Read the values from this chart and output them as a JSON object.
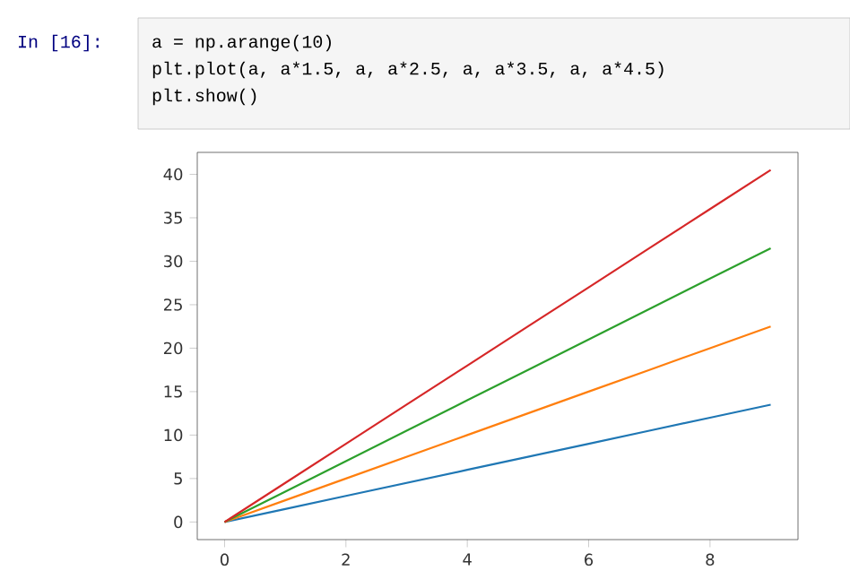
{
  "chart_data": {
    "type": "line",
    "x": [
      0,
      1,
      2,
      3,
      4,
      5,
      6,
      7,
      8,
      9
    ],
    "series": [
      {
        "color": "#1f77b4",
        "values": [
          0,
          1.5,
          3,
          4.5,
          6,
          7.5,
          9,
          10.5,
          12,
          13.5
        ]
      },
      {
        "color": "#ff7f0e",
        "values": [
          0,
          2.5,
          5,
          7.5,
          10,
          12.5,
          15,
          17.5,
          20,
          22.5
        ]
      },
      {
        "color": "#2ca02c",
        "values": [
          0,
          3.5,
          7,
          10.5,
          14,
          17.5,
          21,
          24.5,
          28,
          31.5
        ]
      },
      {
        "color": "#d62728",
        "values": [
          0,
          4.5,
          9,
          13.5,
          18,
          22.5,
          27,
          31.5,
          36,
          40.5
        ]
      }
    ],
    "xlim": [
      -0.45,
      9.45
    ],
    "ylim": [
      -2.025,
      42.525
    ],
    "xticks": [
      0,
      2,
      4,
      6,
      8
    ],
    "yticks": [
      0,
      5,
      10,
      15,
      20,
      25,
      30,
      35,
      40
    ],
    "grid": false,
    "marker": "none",
    "line_style": "solid",
    "annotations": [
      "In  [16]:",
      "a = np.arange(10)",
      "plt.plot(a, a*1.5, a, a*2.5, a, a*3.5, a, a*4.5)",
      "plt.show()"
    ]
  }
}
